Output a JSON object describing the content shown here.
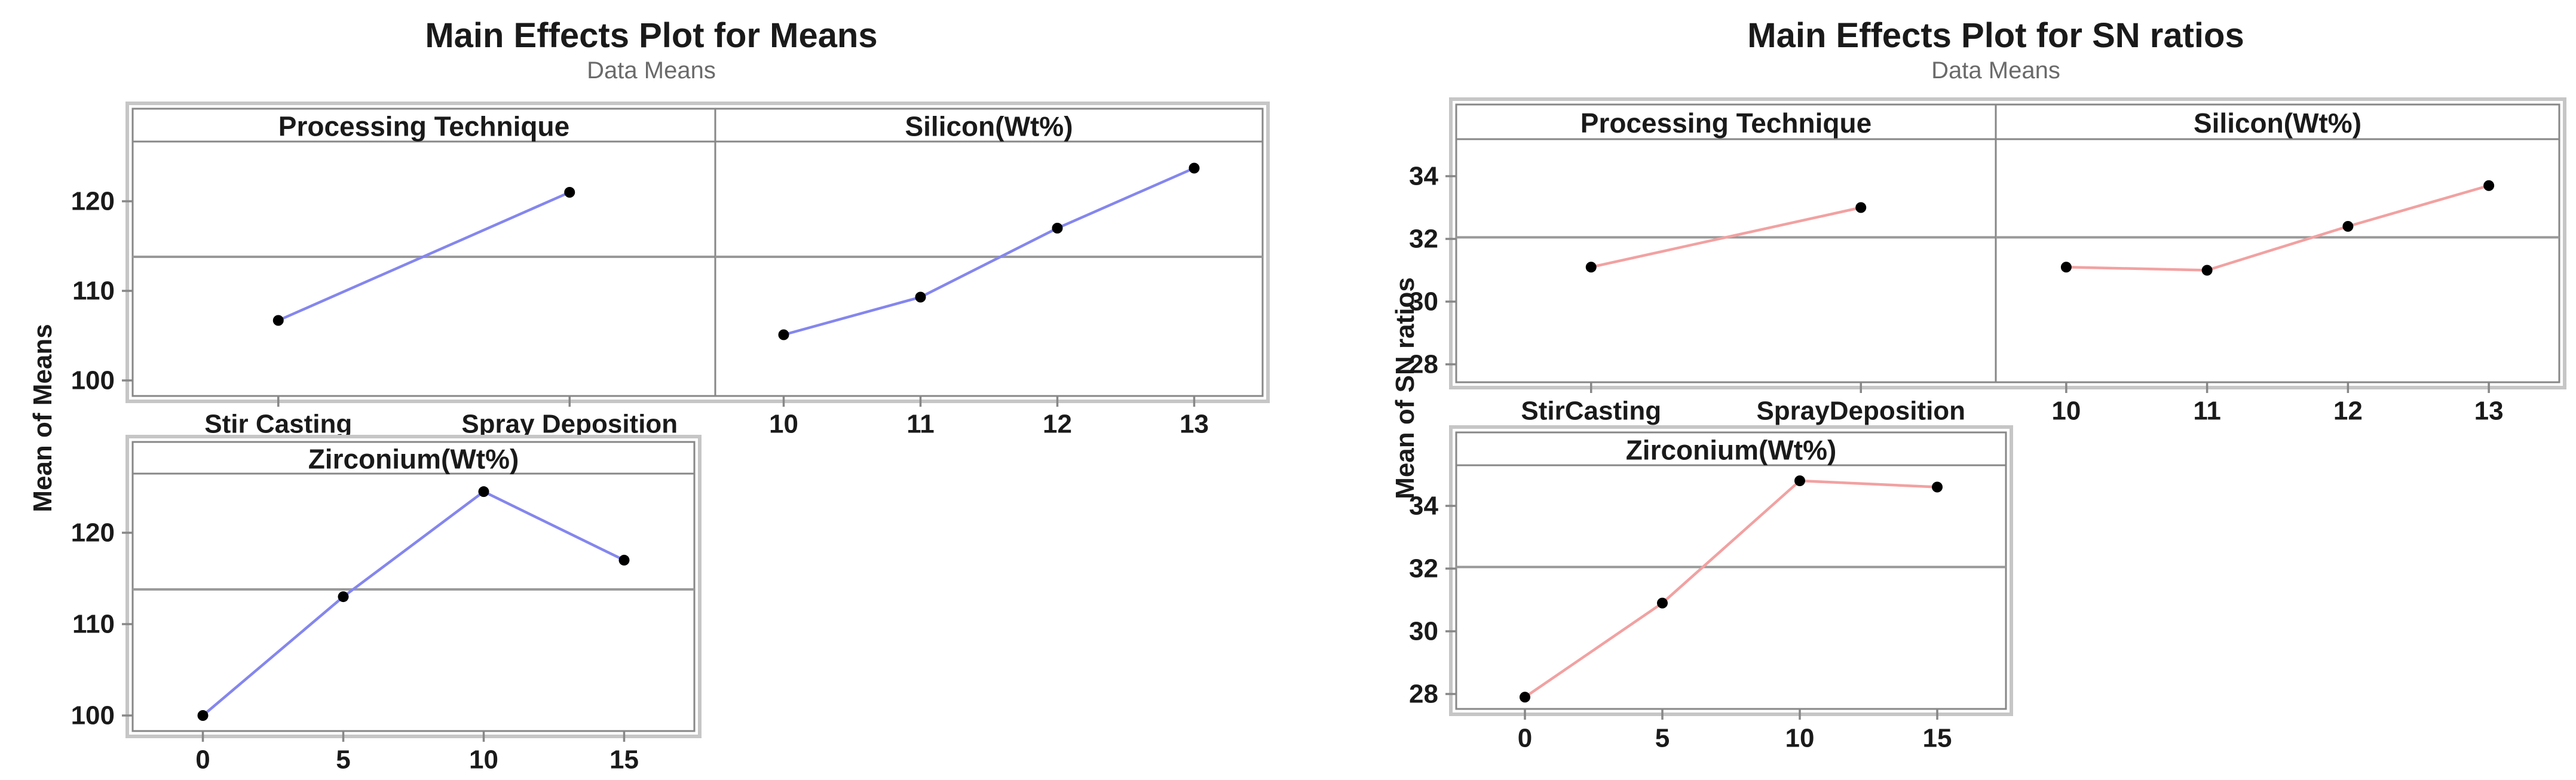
{
  "page": {
    "background": "#ffffff",
    "description": "Two Minitab main effects plots side by side"
  },
  "colors": {
    "means_line": "#8486ee",
    "sn_line": "#f2a1a1",
    "marker": "#000000",
    "panel_border": "#878787",
    "outer_frame": "#c6c6c6",
    "reference_line": "#999999",
    "tick_mark": "#878787",
    "title_text": "#1a1a1a",
    "subtitle_text": "#6a6a6a",
    "label_text": "#1a1a1a"
  },
  "chart_data": [
    {
      "type": "line",
      "id": "means",
      "title": "Main Effects Plot for Means",
      "subtitle": "Data Means",
      "ylabel": "Mean of Means",
      "line_color": "#8486ee",
      "marker_color": "#000000",
      "legend": "none",
      "grid": "off",
      "yticks": [
        100,
        110,
        120
      ],
      "ylim": [
        98.3,
        126.7
      ],
      "reference_line_value": 113.8,
      "panels": [
        {
          "factor": "Processing Technique",
          "categories": [
            "Stir Casting",
            "Spray Deposition"
          ],
          "values": [
            106.7,
            121.0
          ]
        },
        {
          "factor": "Silicon(Wt%)",
          "categories": [
            "10",
            "11",
            "12",
            "13"
          ],
          "values": [
            105.1,
            109.3,
            117.0,
            123.7
          ]
        },
        {
          "factor": "Zirconium(Wt%)",
          "categories": [
            "0",
            "5",
            "10",
            "15"
          ],
          "values": [
            100.0,
            113.0,
            124.5,
            117.0
          ]
        }
      ]
    },
    {
      "type": "line",
      "id": "sn-ratios",
      "title": "Main Effects Plot for SN ratios",
      "subtitle": "Data Means",
      "ylabel": "Mean of SN ratios",
      "line_color": "#f2a1a1",
      "marker_color": "#000000",
      "legend": "none",
      "grid": "off",
      "yticks": [
        28,
        30,
        32,
        34
      ],
      "ylim": [
        27.4,
        35.2
      ],
      "reference_line_value": 32.05,
      "panels": [
        {
          "factor": "Processing Technique",
          "categories": [
            "StirCasting",
            "SprayDeposition"
          ],
          "values": [
            31.1,
            33.0
          ]
        },
        {
          "factor": "Silicon(Wt%)",
          "categories": [
            "10",
            "11",
            "12",
            "13"
          ],
          "values": [
            31.1,
            31.0,
            32.4,
            33.7
          ]
        },
        {
          "factor": "Zirconium(Wt%)",
          "categories": [
            "0",
            "5",
            "10",
            "15"
          ],
          "values": [
            27.9,
            30.9,
            34.8,
            34.6
          ]
        }
      ]
    }
  ]
}
